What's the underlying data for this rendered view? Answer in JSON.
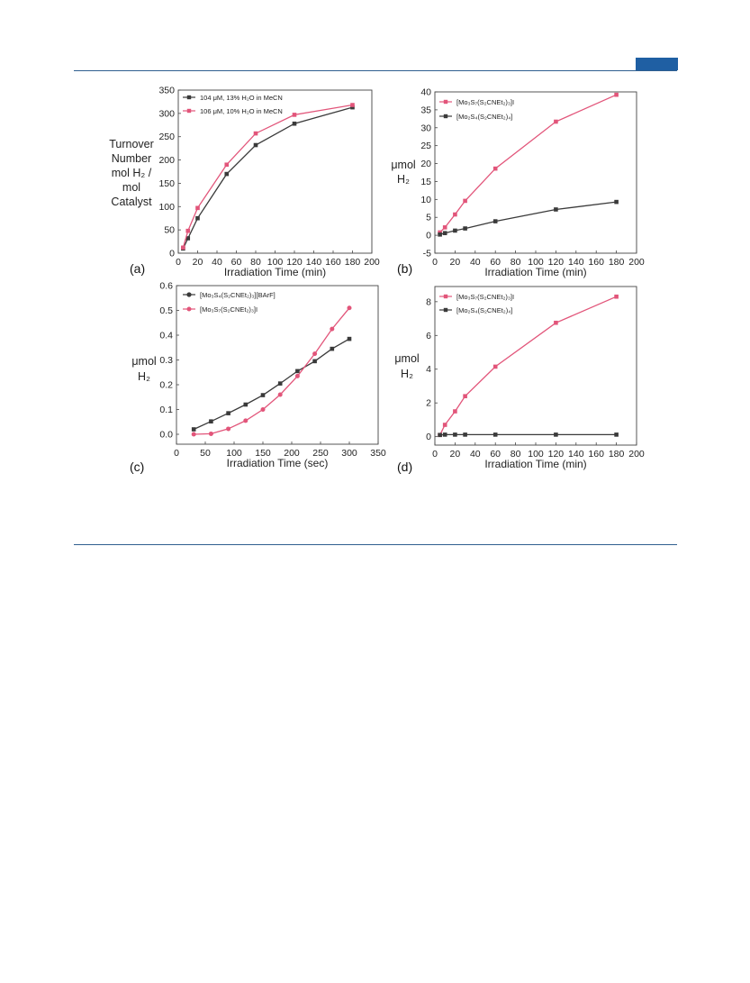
{
  "colors": {
    "black_series": "#3a3a3a",
    "red_series": "#e2557a",
    "rule": "#2f5f8f",
    "tab": "#1f5fa3"
  },
  "chart_data": [
    {
      "panel": "(a)",
      "type": "line",
      "xlabel": "Irradiation Time (min)",
      "ylabel_lines": [
        "Turnover",
        "Number",
        "mol H₂ /",
        "mol",
        "Catalyst"
      ],
      "xlim": [
        0,
        200
      ],
      "ylim": [
        0,
        350
      ],
      "xticks": [
        0,
        20,
        40,
        60,
        80,
        100,
        120,
        140,
        160,
        180,
        200
      ],
      "yticks": [
        0,
        50,
        100,
        150,
        200,
        250,
        300,
        350
      ],
      "legend_position": "top-left",
      "series": [
        {
          "name": "104 μM, 13% H₂O in MeCN",
          "color_key": "black_series",
          "x": [
            5,
            10,
            20,
            50,
            80,
            120,
            180
          ],
          "y": [
            10,
            32,
            75,
            170,
            232,
            278,
            313
          ]
        },
        {
          "name": "106 μM, 10% H₂O in MeCN",
          "color_key": "red_series",
          "x": [
            5,
            10,
            20,
            50,
            80,
            120,
            180
          ],
          "y": [
            12,
            48,
            97,
            190,
            257,
            297,
            318
          ]
        }
      ]
    },
    {
      "panel": "(b)",
      "type": "line",
      "xlabel": "Irradiation Time (min)",
      "ylabel_lines": [
        "μmol",
        "H₂"
      ],
      "xlim": [
        0,
        200
      ],
      "ylim": [
        -5,
        40
      ],
      "xticks": [
        0,
        20,
        40,
        60,
        80,
        100,
        120,
        140,
        160,
        180,
        200
      ],
      "yticks": [
        -5,
        0,
        5,
        10,
        15,
        20,
        25,
        30,
        35,
        40
      ],
      "legend_position": "top-left",
      "series": [
        {
          "name": "[Mo₃S₇(S₂CNEt₂)₃]I",
          "color_key": "red_series",
          "x": [
            5,
            10,
            20,
            30,
            60,
            120,
            180
          ],
          "y": [
            0.8,
            2.2,
            5.8,
            9.6,
            18.6,
            31.7,
            39.2
          ]
        },
        {
          "name": "[Mo₂S₄(S₂CNEt₂)₄]",
          "color_key": "black_series",
          "x": [
            5,
            10,
            20,
            30,
            60,
            120,
            180
          ],
          "y": [
            0.2,
            0.6,
            1.3,
            1.9,
            3.9,
            7.2,
            9.3
          ]
        }
      ]
    },
    {
      "panel": "(c)",
      "type": "line",
      "xlabel": "Irradiation Time (sec)",
      "ylabel_lines": [
        "μmol",
        "H₂"
      ],
      "xlim": [
        0,
        350
      ],
      "ylim": [
        -0.04,
        0.6
      ],
      "xticks": [
        0,
        50,
        100,
        150,
        200,
        250,
        300,
        350
      ],
      "yticks": [
        0.0,
        0.1,
        0.2,
        0.3,
        0.4,
        0.5,
        0.6
      ],
      "legend_position": "top-left",
      "series": [
        {
          "name": "[Mo₃S₄(S₂CNEt₂)₃][BArF]",
          "color_key": "black_series",
          "x": [
            30,
            60,
            90,
            120,
            150,
            180,
            210,
            240,
            270,
            300
          ],
          "y": [
            0.02,
            0.052,
            0.085,
            0.12,
            0.158,
            0.205,
            0.255,
            0.295,
            0.345,
            0.385
          ]
        },
        {
          "name": "[Mo₃S₇(S₂CNEt₂)₃]I",
          "color_key": "red_series",
          "x": [
            30,
            60,
            90,
            120,
            150,
            180,
            210,
            240,
            270,
            300
          ],
          "y": [
            0.0,
            0.002,
            0.022,
            0.055,
            0.1,
            0.16,
            0.235,
            0.325,
            0.425,
            0.51
          ]
        }
      ]
    },
    {
      "panel": "(d)",
      "type": "line",
      "xlabel": "Irradiation Time (min)",
      "ylabel_lines": [
        "μmol",
        "H₂"
      ],
      "xlim": [
        0,
        200
      ],
      "ylim": [
        -0.5,
        8.9
      ],
      "xticks": [
        0,
        20,
        40,
        60,
        80,
        100,
        120,
        140,
        160,
        180,
        200
      ],
      "yticks": [
        0,
        2,
        4,
        6,
        8
      ],
      "legend_position": "top-left",
      "series": [
        {
          "name": "[Mo₃S₇(S₂CNEt₂)₃]I",
          "color_key": "red_series",
          "x": [
            5,
            10,
            20,
            30,
            60,
            120,
            180
          ],
          "y": [
            0.1,
            0.7,
            1.5,
            2.4,
            4.15,
            6.75,
            8.3
          ]
        },
        {
          "name": "[Mo₂S₄(S₂CNEt₂)₄]",
          "color_key": "black_series",
          "x": [
            5,
            10,
            20,
            30,
            60,
            120,
            180
          ],
          "y": [
            0.1,
            0.12,
            0.12,
            0.12,
            0.12,
            0.12,
            0.12
          ]
        }
      ]
    }
  ]
}
